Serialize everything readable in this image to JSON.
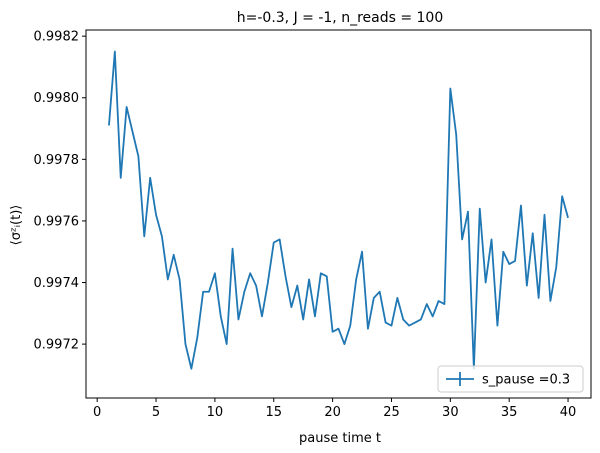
{
  "chart_data": {
    "type": "line",
    "title": "h=-0.3, J = -1, n_reads = 100",
    "xlabel": "pause time t",
    "ylabel": "⟨σᶻᵢ(t)⟩",
    "xlim": [
      -0.95,
      41.95
    ],
    "ylim": [
      0.997025,
      0.99822
    ],
    "x_ticks": [
      0,
      5,
      10,
      15,
      20,
      25,
      30,
      35,
      40
    ],
    "x_tick_labels": [
      "0",
      "5",
      "10",
      "15",
      "20",
      "25",
      "30",
      "35",
      "40"
    ],
    "y_ticks": [
      0.9972,
      0.9974,
      0.9976,
      0.9978,
      0.998,
      0.9982
    ],
    "y_tick_labels": [
      "0.9972",
      "0.9974",
      "0.9976",
      "0.9978",
      "0.9980",
      "0.9982"
    ],
    "grid": false,
    "legend_position": "lower-right",
    "colors": {
      "series": "#1f77b4"
    },
    "series": [
      {
        "name": "s_pause =0.3",
        "x": [
          1,
          1.5,
          2,
          2.5,
          3,
          3.5,
          4,
          4.5,
          5,
          5.5,
          6,
          6.5,
          7,
          7.5,
          8,
          8.5,
          9,
          9.5,
          10,
          10.5,
          11,
          11.5,
          12,
          12.5,
          13,
          13.5,
          14,
          14.5,
          15,
          15.5,
          16,
          16.5,
          17,
          17.5,
          18,
          18.5,
          19,
          19.5,
          20,
          20.5,
          21,
          21.5,
          22,
          22.5,
          23,
          23.5,
          24,
          24.5,
          25,
          25.5,
          26,
          26.5,
          27,
          27.5,
          28,
          28.5,
          29,
          29.5,
          30,
          30.5,
          31,
          31.5,
          32,
          32.5,
          33,
          33.5,
          34,
          34.5,
          35,
          35.5,
          36,
          36.5,
          37,
          37.5,
          38,
          38.5,
          39,
          39.5,
          40
        ],
        "values": [
          0.99791,
          0.99815,
          0.99774,
          0.99797,
          0.99789,
          0.99781,
          0.99755,
          0.99774,
          0.99762,
          0.99755,
          0.99741,
          0.99749,
          0.99741,
          0.9972,
          0.99712,
          0.99722,
          0.99737,
          0.99737,
          0.99743,
          0.99729,
          0.9972,
          0.99751,
          0.99728,
          0.99737,
          0.99743,
          0.99739,
          0.99729,
          0.9974,
          0.99753,
          0.99754,
          0.99742,
          0.99732,
          0.99739,
          0.99728,
          0.99741,
          0.99729,
          0.99743,
          0.99742,
          0.99724,
          0.99725,
          0.9972,
          0.99726,
          0.99741,
          0.9975,
          0.99725,
          0.99735,
          0.99737,
          0.99727,
          0.99726,
          0.99735,
          0.99728,
          0.99726,
          0.99727,
          0.99728,
          0.99733,
          0.99729,
          0.99734,
          0.99733,
          0.99803,
          0.99788,
          0.99754,
          0.99763,
          0.99712,
          0.99764,
          0.9974,
          0.99754,
          0.99726,
          0.9975,
          0.99746,
          0.99747,
          0.99765,
          0.99739,
          0.99756,
          0.99735,
          0.99762,
          0.99734,
          0.99745,
          0.99768,
          0.99761
        ]
      }
    ]
  }
}
